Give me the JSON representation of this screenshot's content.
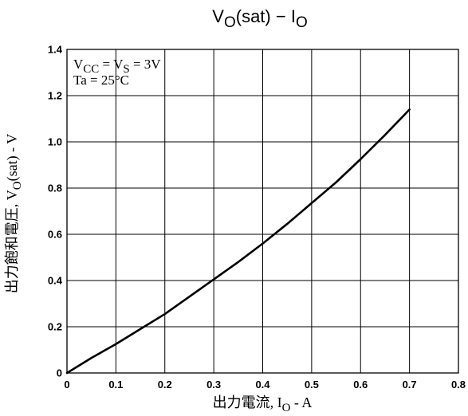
{
  "chart_data": {
    "type": "line",
    "title": {
      "main": "V",
      "main_sub": "O",
      "rest": "(sat) − I",
      "rest_sub": "O"
    },
    "xlabel": {
      "pre": "出力電流, I",
      "sub": "O",
      "post": " - A"
    },
    "ylabel": {
      "pre": "出力飽和電圧, V",
      "sub": "O",
      "post": "(sat) - V"
    },
    "annotation": {
      "line1": {
        "a": "V",
        "a_sub": "CC",
        "b": " = V",
        "b_sub": "S",
        "c": " = 3V"
      },
      "line2": "Ta = 25°C"
    },
    "xlim": [
      0,
      0.8
    ],
    "ylim": [
      0,
      1.4
    ],
    "x_ticks": [
      0,
      0.1,
      0.2,
      0.3,
      0.4,
      0.5,
      0.6,
      0.7,
      0.8
    ],
    "x_tick_labels": [
      "0",
      "0.1",
      "0.2",
      "0.3",
      "0.4",
      "0.5",
      "0.6",
      "0.7",
      "0.8"
    ],
    "y_ticks": [
      0,
      0.2,
      0.4,
      0.6,
      0.8,
      1.0,
      1.2,
      1.4
    ],
    "y_tick_labels": [
      "0",
      "0.2",
      "0.4",
      "0.6",
      "0.8",
      "1.0",
      "1.2",
      "1.4"
    ],
    "grid": true,
    "series": [
      {
        "x": [
          0,
          0.05,
          0.1,
          0.15,
          0.2,
          0.25,
          0.3,
          0.35,
          0.4,
          0.45,
          0.5,
          0.55,
          0.6,
          0.65,
          0.7
        ],
        "y": [
          0,
          0.065,
          0.125,
          0.19,
          0.255,
          0.33,
          0.405,
          0.48,
          0.56,
          0.645,
          0.735,
          0.825,
          0.925,
          1.03,
          1.14
        ]
      }
    ],
    "colors": {
      "line": "#000000",
      "grid": "#000000",
      "background": "#ffffff"
    }
  }
}
